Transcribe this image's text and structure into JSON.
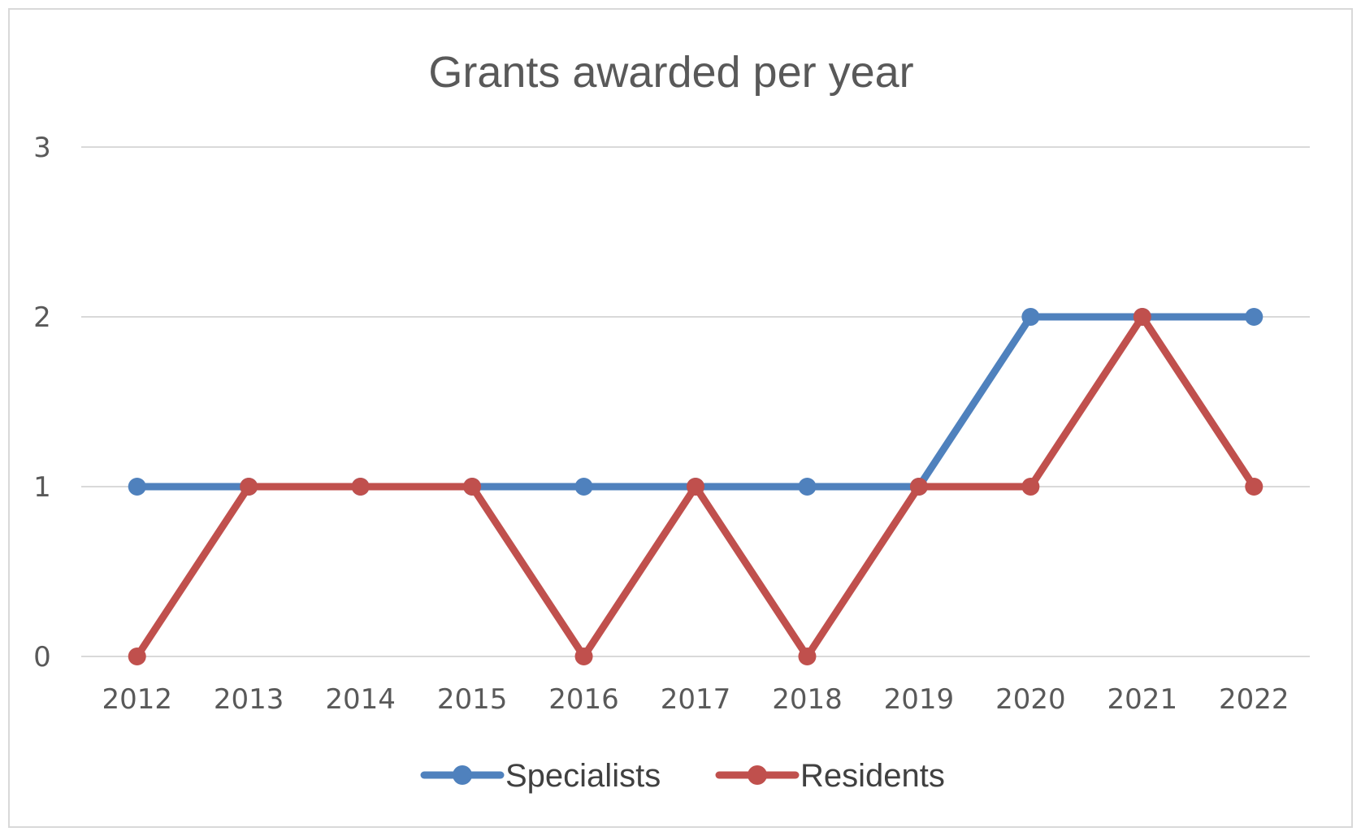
{
  "chart_data": {
    "type": "line",
    "title": "Grants awarded per year",
    "xlabel": "",
    "ylabel": "",
    "categories": [
      "2012",
      "2013",
      "2014",
      "2015",
      "2016",
      "2017",
      "2018",
      "2019",
      "2020",
      "2021",
      "2022"
    ],
    "yticks": [
      "0",
      "1",
      "2",
      "3"
    ],
    "ylim": [
      0,
      3
    ],
    "grid": true,
    "legend_position": "bottom",
    "series": [
      {
        "name": "Specialists",
        "color": "#4f81bd",
        "values": [
          1,
          1,
          1,
          1,
          1,
          1,
          1,
          1,
          2,
          2,
          2
        ]
      },
      {
        "name": "Residents",
        "color": "#c0504d",
        "values": [
          0,
          1,
          1,
          1,
          0,
          1,
          0,
          1,
          1,
          2,
          1
        ]
      }
    ]
  }
}
